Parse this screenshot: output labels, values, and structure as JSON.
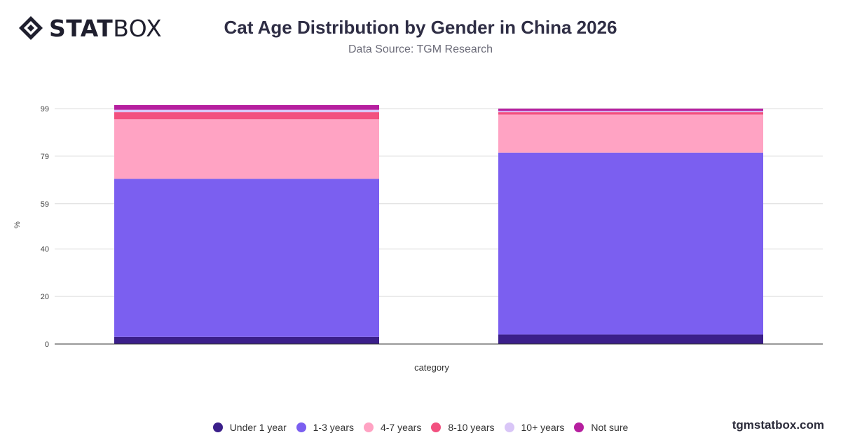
{
  "header": {
    "logo_bold": "STAT",
    "logo_light": "BOX",
    "title": "Cat Age Distribution by Gender in China 2026",
    "subtitle": "Data Source: TGM Research"
  },
  "footer": {
    "brand": "tgmstatbox.com"
  },
  "colors": {
    "Under 1 year": "#3b1f8a",
    "1-3 years": "#7b5ff0",
    "4-7 years": "#ffa3c3",
    "8-10 years": "#f2507f",
    "10+ years": "#d9c6f7",
    "Not sure": "#b61f9f"
  },
  "chart_data": {
    "type": "bar",
    "stacked": true,
    "title": "Cat Age Distribution by Gender in China 2026",
    "subtitle": "Data Source: TGM Research",
    "xlabel": "category",
    "ylabel": "%",
    "ylim": [
      0,
      99
    ],
    "yticks": [
      "0",
      "20",
      "40",
      "59",
      "79",
      "99"
    ],
    "ytick_values": [
      0,
      20,
      40,
      59,
      79,
      99
    ],
    "grid": true,
    "legend_position": "bottom",
    "categories": [
      "",
      ""
    ],
    "series": [
      {
        "name": "Under 1 year",
        "values": [
          3,
          4
        ]
      },
      {
        "name": "1-3 years",
        "values": [
          66.5,
          76.5
        ]
      },
      {
        "name": "4-7 years",
        "values": [
          25,
          16
        ]
      },
      {
        "name": "8-10 years",
        "values": [
          3,
          1
        ]
      },
      {
        "name": "10+ years",
        "values": [
          1,
          0.5
        ]
      },
      {
        "name": "Not sure",
        "values": [
          2,
          1
        ]
      }
    ]
  }
}
